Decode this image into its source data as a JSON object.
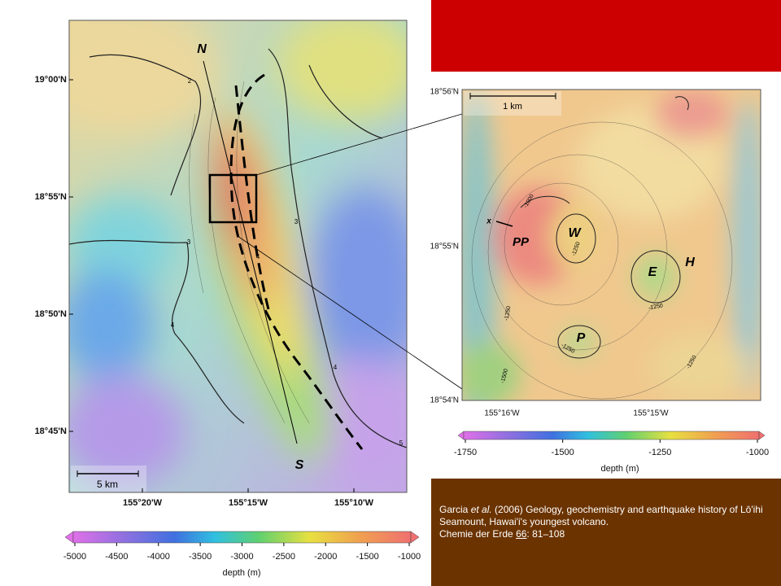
{
  "left_map": {
    "lat_labels": [
      "19°00'N",
      "18°55'N",
      "18°50'N",
      "18°45'N"
    ],
    "lon_labels": [
      "155°20'W",
      "155°15'W",
      "155°10'W"
    ],
    "north_label": "N",
    "south_label": "S",
    "scale_bar": "5 km",
    "contour_labels": [
      "2",
      "3",
      "4",
      "3",
      "4",
      "4",
      "5"
    ],
    "colorbar": {
      "ticks": [
        -5000,
        -4500,
        -4000,
        -3500,
        -3000,
        -2500,
        -2000,
        -1500,
        -1000
      ],
      "label": "depth (m)"
    }
  },
  "inset_map": {
    "lat_labels": [
      "18°56'N",
      "18°55'N",
      "18°54'N"
    ],
    "lon_labels": [
      "155°16'W",
      "155°15'W"
    ],
    "scale_bar": "1 km",
    "feature_labels": [
      "W",
      "PP",
      "E",
      "H",
      "P",
      "x"
    ],
    "contour_labels": [
      "-1000",
      "-1250",
      "-1250",
      "-1250",
      "-1250",
      "-1500",
      "-1250"
    ],
    "colorbar": {
      "ticks": [
        -1750,
        -1500,
        -1250,
        -1000
      ],
      "label": "depth (m)"
    }
  },
  "caption": {
    "author": "Garcia",
    "etal": "et al.",
    "title": "(2006) Geology, geochemistry and earthquake history of Lō'ihi Seamount, Hawai'i's youngest volcano.",
    "journal": "Chemie der Erde",
    "volume": "66",
    "pages": ": 81–108"
  }
}
